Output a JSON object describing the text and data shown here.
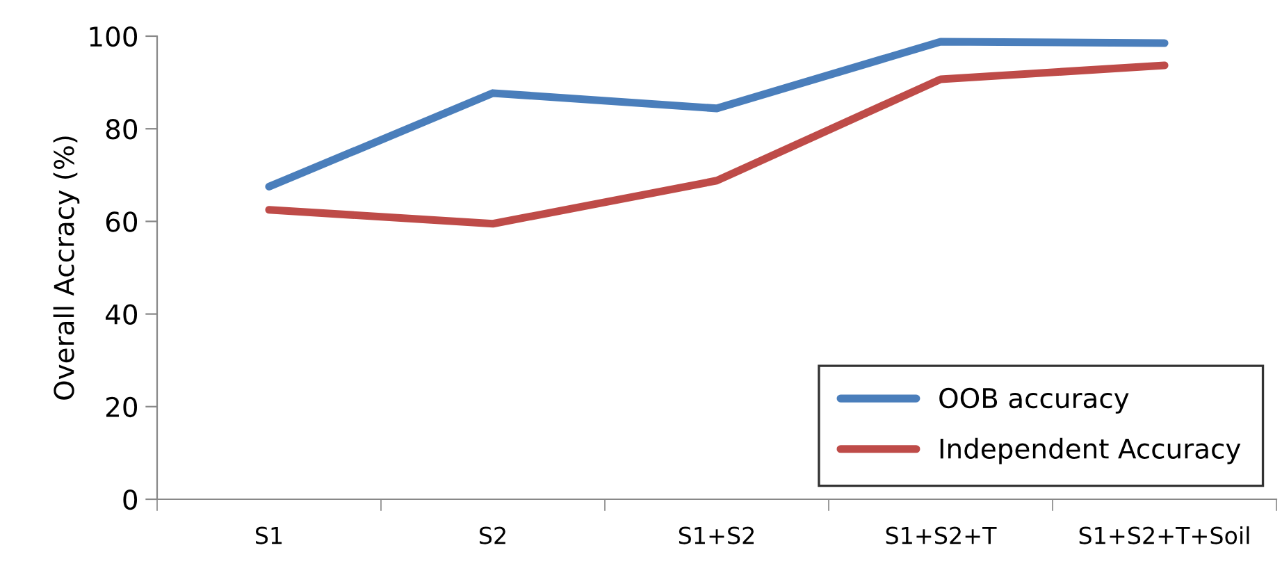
{
  "chart_data": {
    "type": "line",
    "ylabel": "Overall Accracy (%)",
    "categories": [
      "S1",
      "S2",
      "S1+S2",
      "S1+S2+T",
      "S1+S2+T+Soil"
    ],
    "series": [
      {
        "name": "OOB accuracy",
        "color": "#4a7ebb",
        "values": [
          67.5,
          87.7,
          84.4,
          98.8,
          98.5
        ]
      },
      {
        "name": "Independent Accuracy",
        "color": "#be4b48",
        "values": [
          62.5,
          59.5,
          68.8,
          90.7,
          93.7
        ]
      }
    ],
    "ylim": [
      0,
      100
    ],
    "yticks": [
      0,
      20,
      40,
      60,
      80,
      100
    ],
    "grid": false,
    "legend": "bottom right",
    "marker": "none",
    "line_style": "solid"
  }
}
